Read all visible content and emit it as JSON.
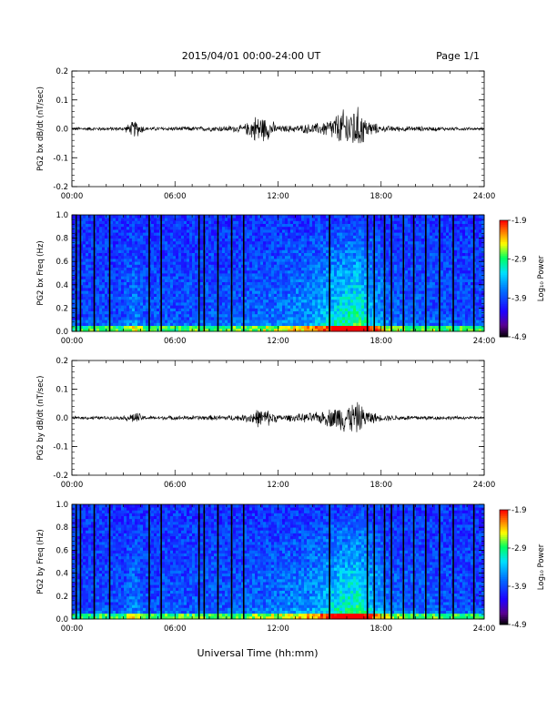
{
  "header": {
    "title": "2015/04/01  00:00-24:00 UT",
    "page": "Page 1/1"
  },
  "x_axis": {
    "label": "Universal Time (hh:mm)",
    "ticks": [
      "00:00",
      "06:00",
      "12:00",
      "18:00",
      "24:00"
    ],
    "range_hours": [
      0,
      24
    ]
  },
  "colorbar": {
    "label": "Log₁₀ Power",
    "ticks": [
      "-1.9",
      "-2.9",
      "-3.9",
      "-4.9"
    ],
    "range": [
      -4.9,
      -1.9
    ]
  },
  "chart_data": [
    {
      "type": "line",
      "ylabel": "PG2 bx dB/dt (nT/sec)",
      "ylim": [
        -0.2,
        0.2
      ],
      "yticks": [
        "0.2",
        "0.1",
        "0.0",
        "-0.1",
        "-0.2"
      ],
      "envelope": {
        "hours": [
          0,
          3,
          3.7,
          4.3,
          8,
          10,
          10.8,
          11.6,
          12,
          13,
          14.5,
          15.2,
          16,
          16.7,
          17.2,
          18,
          20,
          22,
          24
        ],
        "amplitude": [
          0.006,
          0.006,
          0.03,
          0.006,
          0.008,
          0.012,
          0.05,
          0.03,
          0.01,
          0.012,
          0.02,
          0.04,
          0.07,
          0.07,
          0.03,
          0.01,
          0.008,
          0.006,
          0.004
        ]
      }
    },
    {
      "type": "heatmap",
      "ylabel": "PG2 bx Freq (Hz)",
      "ylim": [
        0.0,
        1.0
      ],
      "yticks": [
        "1.0",
        "0.8",
        "0.6",
        "0.4",
        "0.2",
        "0.0"
      ],
      "activity": {
        "hours": [
          0,
          3,
          3.6,
          4.3,
          10,
          12,
          14,
          15.5,
          16.7,
          17.3,
          18.5,
          24
        ],
        "level": [
          0.05,
          0.08,
          0.25,
          0.08,
          0.12,
          0.2,
          0.3,
          0.55,
          0.7,
          0.45,
          0.15,
          0.05
        ]
      },
      "data_gaps_hours": [
        0.25,
        0.5,
        1.3,
        2.2,
        4.5,
        5.2,
        7.4,
        7.7,
        8.5,
        9.3,
        10.0,
        15.0,
        17.2,
        17.6,
        18.2,
        18.6,
        19.3,
        19.9,
        20.6,
        21.4,
        22.2,
        23.4
      ]
    },
    {
      "type": "line",
      "ylabel": "PG2 by dB/dt (nT/sec)",
      "ylim": [
        -0.2,
        0.2
      ],
      "yticks": [
        "0.2",
        "0.1",
        "0.0",
        "-0.1",
        "-0.2"
      ],
      "envelope": {
        "hours": [
          0,
          3,
          3.7,
          4.3,
          8,
          10,
          10.8,
          11.6,
          12,
          13,
          14.5,
          15.2,
          16,
          16.7,
          17.2,
          18,
          20,
          22,
          24
        ],
        "amplitude": [
          0.005,
          0.006,
          0.02,
          0.006,
          0.008,
          0.01,
          0.03,
          0.025,
          0.01,
          0.012,
          0.02,
          0.035,
          0.05,
          0.05,
          0.025,
          0.01,
          0.008,
          0.006,
          0.004
        ]
      }
    },
    {
      "type": "heatmap",
      "ylabel": "PG2 by Freq (Hz)",
      "ylim": [
        0.0,
        1.0
      ],
      "yticks": [
        "1.0",
        "0.8",
        "0.6",
        "0.4",
        "0.2",
        "0.0"
      ],
      "activity": {
        "hours": [
          0,
          3,
          3.6,
          4.3,
          10,
          12,
          14,
          15.5,
          16.7,
          17.3,
          18.5,
          24
        ],
        "level": [
          0.05,
          0.08,
          0.25,
          0.08,
          0.12,
          0.2,
          0.3,
          0.55,
          0.7,
          0.45,
          0.15,
          0.05
        ]
      },
      "data_gaps_hours": [
        0.25,
        0.5,
        1.3,
        2.2,
        4.5,
        5.2,
        7.4,
        7.7,
        8.5,
        9.3,
        10.0,
        15.0,
        17.2,
        17.6,
        18.2,
        18.6,
        19.3,
        19.9,
        20.6,
        21.4,
        22.2,
        23.4
      ]
    }
  ]
}
